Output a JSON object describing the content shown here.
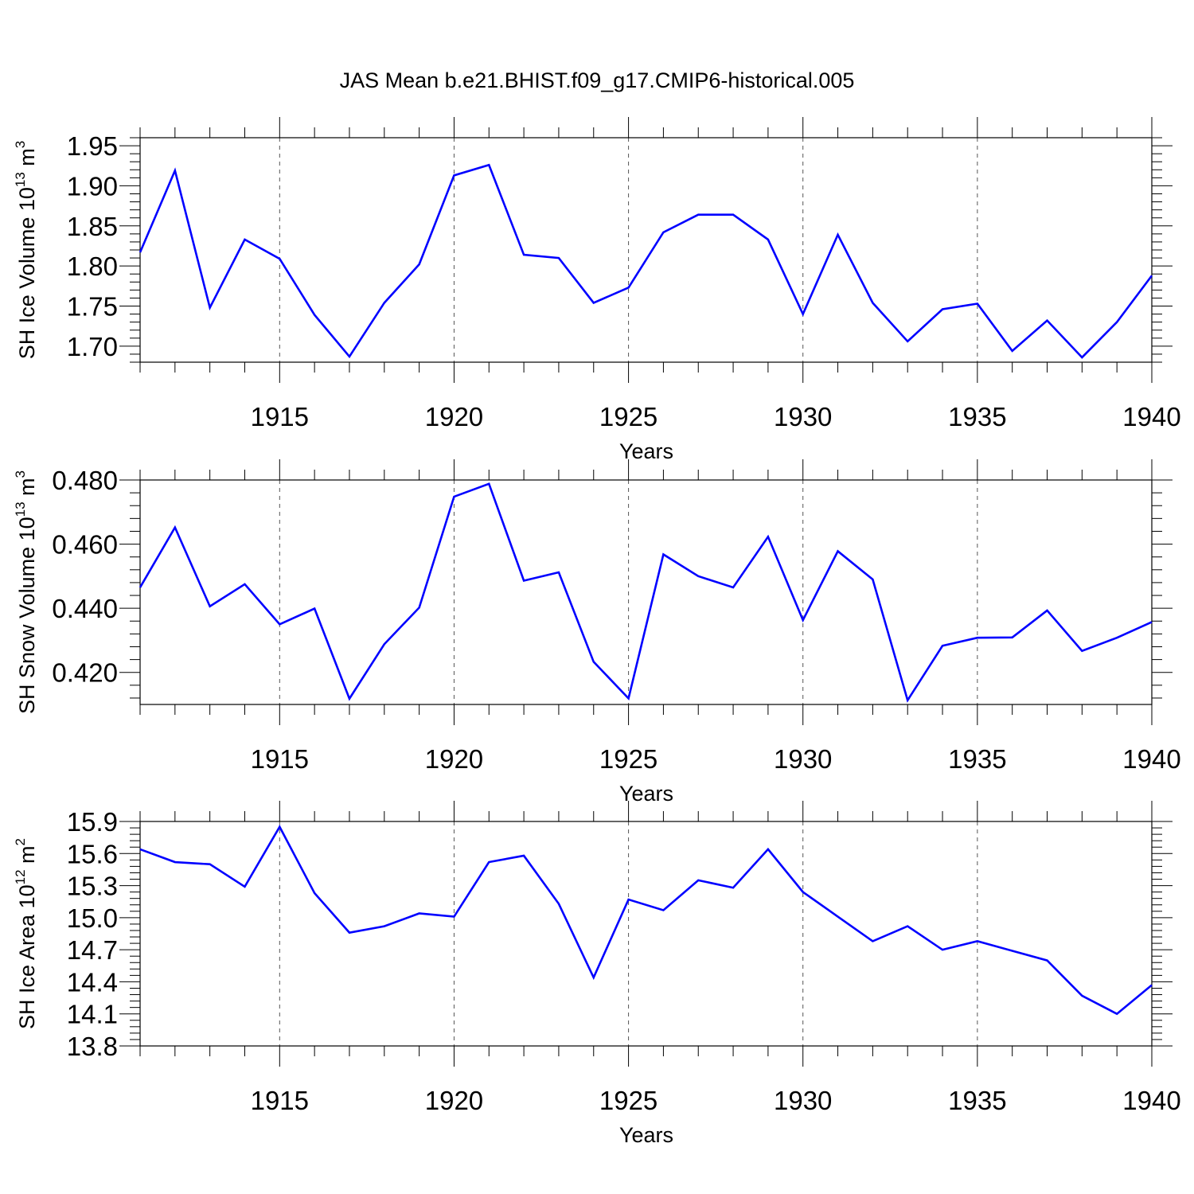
{
  "title": "JAS Mean b.e21.BHIST.f09_g17.CMIP6-historical.005",
  "colors": {
    "series": "#0000ff",
    "frame": "#000000",
    "grid": "#555555"
  },
  "chart_data": [
    {
      "type": "line",
      "xlabel": "Years",
      "ylabel": {
        "prefix": "SH Ice Volume 10",
        "exp": "13",
        "unit": " m",
        "unit_exp": "3"
      },
      "xlim": [
        1911,
        1940
      ],
      "ylim": [
        1.68,
        1.96
      ],
      "yticks": [
        "1.70",
        "1.75",
        "1.80",
        "1.85",
        "1.90",
        "1.95"
      ],
      "xticks": [
        1915,
        1920,
        1925,
        1930,
        1935,
        1940
      ],
      "grid": "dashed vertical at x ticks",
      "x": [
        1911,
        1912,
        1913,
        1914,
        1915,
        1916,
        1917,
        1918,
        1919,
        1920,
        1921,
        1922,
        1923,
        1924,
        1925,
        1926,
        1927,
        1928,
        1929,
        1930,
        1931,
        1932,
        1933,
        1934,
        1935,
        1936,
        1937,
        1938,
        1939,
        1940
      ],
      "values": [
        1.817,
        1.919,
        1.748,
        1.833,
        1.809,
        1.739,
        1.687,
        1.754,
        1.802,
        1.913,
        1.926,
        1.814,
        1.81,
        1.754,
        1.773,
        1.842,
        1.864,
        1.864,
        1.833,
        1.74,
        1.839,
        1.754,
        1.706,
        1.746,
        1.753,
        1.694,
        1.732,
        1.686,
        1.73,
        1.788
      ]
    },
    {
      "type": "line",
      "xlabel": "Years",
      "ylabel": {
        "prefix": "SH Snow Volume 10",
        "exp": "13",
        "unit": " m",
        "unit_exp": "3"
      },
      "xlim": [
        1911,
        1940
      ],
      "ylim": [
        0.41,
        0.48
      ],
      "yticks": [
        "0.420",
        "0.440",
        "0.460",
        "0.480"
      ],
      "xticks": [
        1915,
        1920,
        1925,
        1930,
        1935,
        1940
      ],
      "grid": "dashed vertical at x ticks",
      "x": [
        1911,
        1912,
        1913,
        1914,
        1915,
        1916,
        1917,
        1918,
        1919,
        1920,
        1921,
        1922,
        1923,
        1924,
        1925,
        1926,
        1927,
        1928,
        1929,
        1930,
        1931,
        1932,
        1933,
        1934,
        1935,
        1936,
        1937,
        1938,
        1939,
        1940
      ],
      "values": [
        0.4465,
        0.4652,
        0.4406,
        0.4475,
        0.435,
        0.4399,
        0.4118,
        0.4288,
        0.4402,
        0.4748,
        0.4788,
        0.4486,
        0.4512,
        0.4233,
        0.4119,
        0.4568,
        0.45,
        0.4465,
        0.4623,
        0.4363,
        0.4578,
        0.449,
        0.4113,
        0.4283,
        0.4308,
        0.4309,
        0.4393,
        0.4267,
        0.4308,
        0.4357
      ]
    },
    {
      "type": "line",
      "xlabel": "Years",
      "ylabel": {
        "prefix": "SH Ice Area 10",
        "exp": "12",
        "unit": " m",
        "unit_exp": "2"
      },
      "xlim": [
        1911,
        1940
      ],
      "ylim": [
        13.8,
        15.9
      ],
      "yticks": [
        "13.8",
        "14.1",
        "14.4",
        "14.7",
        "15.0",
        "15.3",
        "15.6",
        "15.9"
      ],
      "xticks": [
        1915,
        1920,
        1925,
        1930,
        1935,
        1940
      ],
      "grid": "dashed vertical at x ticks",
      "x": [
        1911,
        1912,
        1913,
        1914,
        1915,
        1916,
        1917,
        1918,
        1919,
        1920,
        1921,
        1922,
        1923,
        1924,
        1925,
        1926,
        1927,
        1928,
        1929,
        1930,
        1931,
        1932,
        1933,
        1934,
        1935,
        1936,
        1937,
        1938,
        1939,
        1940
      ],
      "values": [
        15.64,
        15.52,
        15.5,
        15.29,
        15.85,
        15.23,
        14.86,
        14.92,
        15.04,
        15.01,
        15.52,
        15.58,
        15.13,
        14.44,
        15.17,
        15.07,
        15.35,
        15.28,
        15.64,
        15.24,
        15.01,
        14.78,
        14.92,
        14.7,
        14.78,
        14.69,
        14.6,
        14.27,
        14.1,
        14.37
      ]
    }
  ]
}
